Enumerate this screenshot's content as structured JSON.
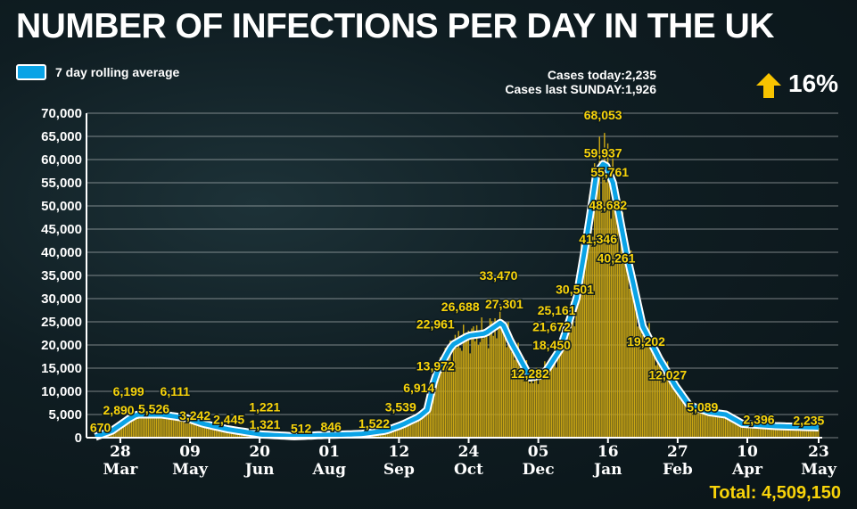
{
  "header": {
    "title": "NUMBER OF INFECTIONS PER DAY IN THE UK"
  },
  "legend": {
    "label": "7 day rolling average"
  },
  "stats": {
    "cases_today": "Cases today:2,235",
    "cases_last_sunday": "Cases last SUNDAY:1,926",
    "change": "16%",
    "change_icon": "arrow-up-icon"
  },
  "footer": {
    "total": "Total: 4,509,150"
  },
  "colors": {
    "bars": "#c9a514",
    "line": "#0aa3e6",
    "labels": "#f8d30a"
  },
  "chart_data": {
    "type": "bar",
    "title": "NUMBER OF INFECTIONS PER DAY IN THE UK",
    "ylim": [
      0,
      70000
    ],
    "yticks": [
      "0",
      "5,000",
      "10,000",
      "15,000",
      "20,000",
      "25,000",
      "30,000",
      "35,000",
      "40,000",
      "45,000",
      "50,000",
      "55,000",
      "60,000",
      "65,000",
      "70,000"
    ],
    "xrange_days": [
      0,
      436
    ],
    "xticks": [
      {
        "day": 15,
        "d": "28",
        "m": "Mar"
      },
      {
        "day": 57,
        "d": "09",
        "m": "May"
      },
      {
        "day": 99,
        "d": "20",
        "m": "Jun"
      },
      {
        "day": 141,
        "d": "01",
        "m": "Aug"
      },
      {
        "day": 183,
        "d": "12",
        "m": "Sep"
      },
      {
        "day": 225,
        "d": "24",
        "m": "Oct"
      },
      {
        "day": 267,
        "d": "05",
        "m": "Dec"
      },
      {
        "day": 309,
        "d": "16",
        "m": "Jan"
      },
      {
        "day": 351,
        "d": "27",
        "m": "Feb"
      },
      {
        "day": 393,
        "d": "10",
        "m": "Apr"
      },
      {
        "day": 436,
        "d": "23",
        "m": "May"
      }
    ],
    "rolling_average": [
      [
        0,
        200
      ],
      [
        10,
        1500
      ],
      [
        20,
        4000
      ],
      [
        25,
        5000
      ],
      [
        40,
        5000
      ],
      [
        55,
        4200
      ],
      [
        65,
        3000
      ],
      [
        80,
        1800
      ],
      [
        100,
        700
      ],
      [
        120,
        300
      ],
      [
        140,
        600
      ],
      [
        160,
        800
      ],
      [
        175,
        1500
      ],
      [
        185,
        2800
      ],
      [
        195,
        4500
      ],
      [
        200,
        6000
      ],
      [
        205,
        13500
      ],
      [
        215,
        20000
      ],
      [
        225,
        22000
      ],
      [
        235,
        22500
      ],
      [
        245,
        25000
      ],
      [
        250,
        21000
      ],
      [
        262,
        13000
      ],
      [
        270,
        13500
      ],
      [
        280,
        19000
      ],
      [
        290,
        30000
      ],
      [
        297,
        45000
      ],
      [
        302,
        57000
      ],
      [
        307,
        59500
      ],
      [
        312,
        55000
      ],
      [
        320,
        40000
      ],
      [
        330,
        24000
      ],
      [
        340,
        17000
      ],
      [
        350,
        11000
      ],
      [
        358,
        7000
      ],
      [
        370,
        5500
      ],
      [
        380,
        5000
      ],
      [
        390,
        3000
      ],
      [
        410,
        2500
      ],
      [
        436,
        2200
      ]
    ],
    "annotations": [
      {
        "label": "670",
        "day": 3,
        "value": 670
      },
      {
        "label": "2,890",
        "day": 14,
        "value": 2890
      },
      {
        "label": "6,199",
        "day": 20,
        "value": 6199
      },
      {
        "label": "5,526",
        "day": 32,
        "value": 5526
      },
      {
        "label": "6,111",
        "day": 48,
        "value": 6111
      },
      {
        "label": "3,242",
        "day": 60,
        "value": 3242
      },
      {
        "label": "2,445",
        "day": 74,
        "value": 2445
      },
      {
        "label": "1,321",
        "day": 86,
        "value": 1321
      },
      {
        "label": "1,221",
        "day": 102,
        "value": 1221
      },
      {
        "label": "512",
        "day": 124,
        "value": 512
      },
      {
        "label": "846",
        "day": 142,
        "value": 846
      },
      {
        "label": "1,522",
        "day": 168,
        "value": 1522
      },
      {
        "label": "3,539",
        "day": 184,
        "value": 3539
      },
      {
        "label": "6,914",
        "day": 195,
        "value": 6914
      },
      {
        "label": "13,972",
        "day": 205,
        "value": 13972
      },
      {
        "label": "22,961",
        "day": 205,
        "value": 22961
      },
      {
        "label": "26,688",
        "day": 220,
        "value": 26688
      },
      {
        "label": "27,301",
        "day": 240,
        "value": 27301
      },
      {
        "label": "33,470",
        "day": 243,
        "value": 33470
      },
      {
        "label": "12,282",
        "day": 262,
        "value": 12282
      },
      {
        "label": "18,450",
        "day": 275,
        "value": 18450
      },
      {
        "label": "21,672",
        "day": 275,
        "value": 21672
      },
      {
        "label": "25,161",
        "day": 278,
        "value": 25161
      },
      {
        "label": "30,501",
        "day": 289,
        "value": 30501
      },
      {
        "label": "68,053",
        "day": 306,
        "value": 68053
      },
      {
        "label": "59,937",
        "day": 306,
        "value": 59937
      },
      {
        "label": "55,761",
        "day": 310,
        "value": 55761
      },
      {
        "label": "48,682",
        "day": 309,
        "value": 48682
      },
      {
        "label": "41,346",
        "day": 303,
        "value": 41346
      },
      {
        "label": "40,261",
        "day": 314,
        "value": 40261
      },
      {
        "label": "19,202",
        "day": 332,
        "value": 19202
      },
      {
        "label": "12,027",
        "day": 345,
        "value": 12027
      },
      {
        "label": "5,089",
        "day": 366,
        "value": 5089
      },
      {
        "label": "2,396",
        "day": 400,
        "value": 2396
      },
      {
        "label": "2,235",
        "day": 430,
        "value": 2235
      }
    ]
  }
}
